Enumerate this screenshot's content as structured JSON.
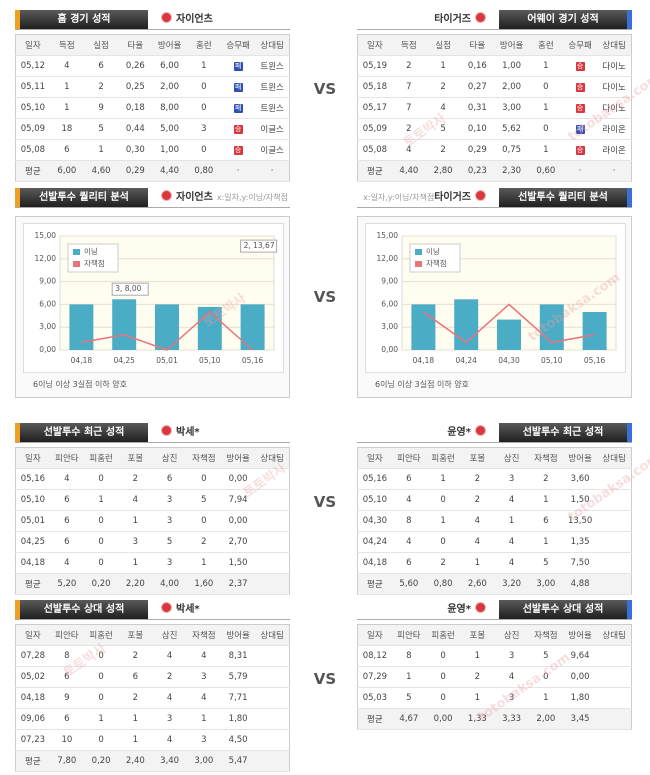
{
  "vs": "VS",
  "watermark": [
    "토토박사",
    "totobaksa.com"
  ],
  "home_away": {
    "left": {
      "title": "홈 경기 성적",
      "team": "자이언츠",
      "columns": [
        "일자",
        "득점",
        "실점",
        "타율",
        "방어율",
        "홈런",
        "승무패",
        "상대팀"
      ],
      "rows": [
        [
          "05,12",
          "4",
          "6",
          "0,26",
          "6,00",
          "1",
          {
            "label": "패",
            "color": "#2e4fb5"
          },
          "트윈스"
        ],
        [
          "05,11",
          "1",
          "2",
          "0,25",
          "2,00",
          "0",
          {
            "label": "패",
            "color": "#2e4fb5"
          },
          "트윈스"
        ],
        [
          "05,10",
          "1",
          "9",
          "0,18",
          "8,00",
          "0",
          {
            "label": "패",
            "color": "#2e4fb5"
          },
          "트윈스"
        ],
        [
          "05,09",
          "18",
          "5",
          "0,44",
          "5,00",
          "3",
          {
            "label": "승",
            "color": "#d9363e"
          },
          "이글스"
        ],
        [
          "05,08",
          "6",
          "1",
          "0,30",
          "1,00",
          "0",
          {
            "label": "승",
            "color": "#d9363e"
          },
          "이글스"
        ]
      ],
      "average": [
        "평균",
        "6,00",
        "4,60",
        "0,29",
        "4,40",
        "0,80",
        "·",
        "·"
      ]
    },
    "right": {
      "title": "어웨이 경기 성적",
      "team": "타이거즈",
      "columns": [
        "일자",
        "득점",
        "실점",
        "타율",
        "방어율",
        "홈런",
        "승무패",
        "상대팀"
      ],
      "rows": [
        [
          "05,19",
          "2",
          "1",
          "0,16",
          "1,00",
          "1",
          {
            "label": "승",
            "color": "#d9363e"
          },
          "다이노"
        ],
        [
          "05,18",
          "7",
          "2",
          "0,27",
          "2,00",
          "0",
          {
            "label": "승",
            "color": "#d9363e"
          },
          "다이노"
        ],
        [
          "05,17",
          "7",
          "4",
          "0,31",
          "3,00",
          "1",
          {
            "label": "승",
            "color": "#d9363e"
          },
          "다이노"
        ],
        [
          "05,09",
          "2",
          "5",
          "0,10",
          "5,62",
          "0",
          {
            "label": "패",
            "color": "#2e4fb5"
          },
          "라이온"
        ],
        [
          "05,08",
          "4",
          "2",
          "0,29",
          "0,75",
          "1",
          {
            "label": "승",
            "color": "#d9363e"
          },
          "라이온"
        ]
      ],
      "average": [
        "평균",
        "4,40",
        "2,80",
        "0,23",
        "2,30",
        "0,60",
        "·",
        "·"
      ]
    }
  },
  "quality": {
    "left": {
      "title": "선발투수 퀄리티 분석",
      "team": "자이언츠",
      "axis_note": "x:일자,y:이닝/자책점",
      "note": "6이닝 이상 3실점 이하 양호",
      "chart": {
        "type": "bar",
        "categories": [
          "04,18",
          "04,25",
          "05,01",
          "05,10",
          "05,16"
        ],
        "ylim": [
          0,
          15
        ],
        "yticks": [
          {
            "value": 0,
            "label": "0,00"
          },
          {
            "value": 3,
            "label": "3,00"
          },
          {
            "value": 6,
            "label": "6,00"
          },
          {
            "value": 9,
            "label": "9,00"
          },
          {
            "value": 12,
            "label": "12,00"
          },
          {
            "value": 15,
            "label": "15,00"
          }
        ],
        "series": [
          {
            "name": "이닝",
            "color": "#4bacc6",
            "values": [
              6,
              6.67,
              6,
              5.67,
              6
            ]
          },
          {
            "name": "자책점",
            "color": "#e8737a",
            "values": [
              1,
              2,
              0,
              5,
              0
            ]
          }
        ],
        "annotations": [
          "3, 8,00",
          "2, 13,67"
        ]
      }
    },
    "right": {
      "title": "선발투수 퀄리티 분석",
      "team": "타이거즈",
      "axis_note": "x:일자,y:이닝/자책점",
      "note": "6이닝 이상 3실점 이하 양호",
      "chart": {
        "type": "bar",
        "categories": [
          "04,18",
          "04,24",
          "04,30",
          "05,10",
          "05,16"
        ],
        "ylim": [
          0,
          15
        ],
        "yticks": [
          {
            "value": 0,
            "label": "0,00"
          },
          {
            "value": 3,
            "label": "3,00"
          },
          {
            "value": 6,
            "label": "6,00"
          },
          {
            "value": 9,
            "label": "9,00"
          },
          {
            "value": 12,
            "label": "12,00"
          },
          {
            "value": 15,
            "label": "15,00"
          }
        ],
        "series": [
          {
            "name": "이닝",
            "color": "#4bacc6",
            "values": [
              6,
              6.67,
              4,
              6,
              5
            ]
          },
          {
            "name": "자책점",
            "color": "#e8737a",
            "values": [
              5,
              1,
              6,
              1,
              2
            ]
          }
        ]
      }
    }
  },
  "recent": {
    "left": {
      "title": "선발투수 최근 성적",
      "team": "박세*",
      "columns": [
        "일자",
        "피안타",
        "피홈런",
        "포볼",
        "삼진",
        "자책점",
        "방어율",
        "상대팀"
      ],
      "rows": [
        [
          "05,16",
          "4",
          "0",
          "2",
          "6",
          "0",
          "0,00"
        ],
        [
          "05,10",
          "6",
          "1",
          "4",
          "3",
          "5",
          "7,94"
        ],
        [
          "05,01",
          "6",
          "0",
          "1",
          "3",
          "0",
          "0,00"
        ],
        [
          "04,25",
          "6",
          "0",
          "3",
          "5",
          "2",
          "2,70"
        ],
        [
          "04,18",
          "4",
          "0",
          "1",
          "3",
          "1",
          "1,50"
        ]
      ],
      "average": [
        "평균",
        "5,20",
        "0,20",
        "2,20",
        "4,00",
        "1,60",
        "2,37"
      ]
    },
    "right": {
      "title": "선발투수 최근 성적",
      "team": "윤영*",
      "columns": [
        "일자",
        "피안타",
        "피홈런",
        "포볼",
        "삼진",
        "자책점",
        "방어율",
        "상대팀"
      ],
      "rows": [
        [
          "05,16",
          "6",
          "1",
          "2",
          "3",
          "2",
          "3,60"
        ],
        [
          "05,10",
          "4",
          "0",
          "2",
          "4",
          "1",
          "1,50"
        ],
        [
          "04,30",
          "8",
          "1",
          "4",
          "1",
          "6",
          "13,50"
        ],
        [
          "04,24",
          "4",
          "0",
          "4",
          "4",
          "1",
          "1,35"
        ],
        [
          "04,18",
          "6",
          "2",
          "1",
          "4",
          "5",
          "7,50"
        ]
      ],
      "average": [
        "평균",
        "5,60",
        "0,80",
        "2,60",
        "3,20",
        "3,00",
        "4,88"
      ]
    }
  },
  "versus": {
    "left": {
      "title": "선발투수 상대 성적",
      "team": "박세*",
      "columns": [
        "일자",
        "피안타",
        "피홈런",
        "포볼",
        "삼진",
        "자책점",
        "방어율",
        "상대팀"
      ],
      "rows": [
        [
          "07,28",
          "8",
          "0",
          "2",
          "4",
          "4",
          "8,31"
        ],
        [
          "05,02",
          "6",
          "0",
          "6",
          "2",
          "3",
          "5,79"
        ],
        [
          "04,18",
          "9",
          "0",
          "2",
          "4",
          "4",
          "7,71"
        ],
        [
          "09,06",
          "6",
          "1",
          "1",
          "3",
          "1",
          "1,80"
        ],
        [
          "07,23",
          "10",
          "0",
          "1",
          "4",
          "3",
          "4,50"
        ]
      ],
      "average": [
        "평균",
        "7,80",
        "0,20",
        "2,40",
        "3,40",
        "3,00",
        "5,47"
      ]
    },
    "right": {
      "title": "선발투수 상대 성적",
      "team": "윤영*",
      "columns": [
        "일자",
        "피안타",
        "피홈런",
        "포볼",
        "삼진",
        "자책점",
        "방어율",
        "상대팀"
      ],
      "rows": [
        [
          "08,12",
          "8",
          "0",
          "1",
          "3",
          "5",
          "9,64"
        ],
        [
          "07,29",
          "1",
          "0",
          "2",
          "4",
          "0",
          "0,00"
        ],
        [
          "05,03",
          "5",
          "0",
          "1",
          "3",
          "1",
          "1,80"
        ]
      ],
      "average": [
        "평균",
        "4,67",
        "0,00",
        "1,33",
        "3,33",
        "2,00",
        "3,45"
      ]
    }
  }
}
